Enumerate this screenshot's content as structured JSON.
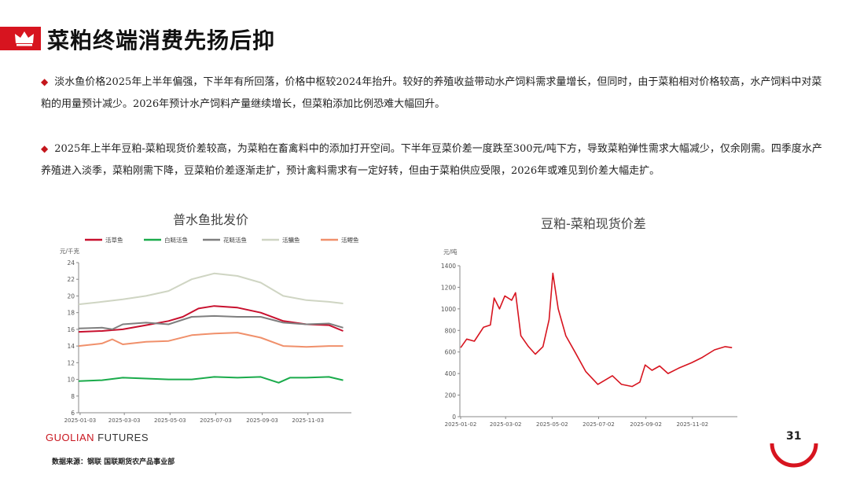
{
  "slide": {
    "title": "菜粕终端消费先扬后抑",
    "paragraphs": [
      "淡水鱼价格2025年上半年偏强，下半年有所回落，价格中枢较2024年抬升。较好的养殖收益带动水产饲料需求量增长，但同时，由于菜粕相对价格较高，水产饲料中对菜粕的用量预计减少。2026年预计水产饲料产量继续增长，但菜粕添加比例恐难大幅回升。",
      "2025年上半年豆粕-菜粕现货价差较高，为菜粕在畜禽料中的添加打开空间。下半年豆菜价差一度跌至300元/吨下方，导致菜粕弹性需求大幅减少，仅余刚需。四季度水产养殖进入淡季，菜粕刚需下降，豆菜粕价差逐渐走扩，预计禽料需求有一定好转，但由于菜粕供应受限，2026年或难见到价差大幅走扩。"
    ],
    "bullet_symbol": "◆",
    "footer_brand_bold": "GUOLIAN",
    "footer_brand_light": " FUTURES",
    "source": "数据来源：钢联  国联期货农产品事业部",
    "page_number": "31",
    "colors": {
      "accent": "#d7141f"
    }
  },
  "chart_data": [
    {
      "type": "line",
      "title": "普水鱼批发价",
      "ylabel": "元/千克",
      "ylim": [
        6,
        24
      ],
      "yticks": [
        6,
        8,
        10,
        12,
        14,
        16,
        18,
        20,
        22,
        24
      ],
      "xlim": [
        "2025-01-01",
        "2025-12-31"
      ],
      "xticks": [
        "2025-01-03",
        "2025-03-03",
        "2025-05-03",
        "2025-07-03",
        "2025-09-03",
        "2025-11-03"
      ],
      "legend_position": "top",
      "series": [
        {
          "name": "活草鱼",
          "color": "#c8102e",
          "points": [
            [
              "2025-01-01",
              15.7
            ],
            [
              "2025-02-01",
              15.8
            ],
            [
              "2025-03-01",
              16.0
            ],
            [
              "2025-04-01",
              16.5
            ],
            [
              "2025-05-01",
              17.0
            ],
            [
              "2025-05-20",
              17.5
            ],
            [
              "2025-06-10",
              18.5
            ],
            [
              "2025-07-01",
              18.8
            ],
            [
              "2025-08-01",
              18.6
            ],
            [
              "2025-09-01",
              18.0
            ],
            [
              "2025-10-01",
              17.0
            ],
            [
              "2025-11-01",
              16.6
            ],
            [
              "2025-12-01",
              16.5
            ],
            [
              "2025-12-20",
              15.8
            ]
          ]
        },
        {
          "name": "白鲢活鱼",
          "color": "#1aab4b",
          "points": [
            [
              "2025-01-01",
              9.8
            ],
            [
              "2025-02-01",
              9.9
            ],
            [
              "2025-03-01",
              10.2
            ],
            [
              "2025-04-01",
              10.1
            ],
            [
              "2025-05-01",
              10.0
            ],
            [
              "2025-06-01",
              10.0
            ],
            [
              "2025-07-01",
              10.3
            ],
            [
              "2025-08-01",
              10.2
            ],
            [
              "2025-09-01",
              10.3
            ],
            [
              "2025-09-25",
              9.6
            ],
            [
              "2025-10-10",
              10.2
            ],
            [
              "2025-11-01",
              10.2
            ],
            [
              "2025-12-01",
              10.3
            ],
            [
              "2025-12-20",
              9.9
            ]
          ]
        },
        {
          "name": "花鲢活鱼",
          "color": "#7f7f7f",
          "points": [
            [
              "2025-01-01",
              16.1
            ],
            [
              "2025-02-01",
              16.2
            ],
            [
              "2025-02-15",
              16.0
            ],
            [
              "2025-03-01",
              16.6
            ],
            [
              "2025-04-01",
              16.8
            ],
            [
              "2025-05-01",
              16.6
            ],
            [
              "2025-06-01",
              17.5
            ],
            [
              "2025-07-01",
              17.6
            ],
            [
              "2025-08-01",
              17.5
            ],
            [
              "2025-09-01",
              17.5
            ],
            [
              "2025-10-01",
              16.8
            ],
            [
              "2025-11-01",
              16.6
            ],
            [
              "2025-12-01",
              16.7
            ],
            [
              "2025-12-20",
              16.2
            ]
          ]
        },
        {
          "name": "活鳙鱼",
          "color": "#cfd5c3",
          "points": [
            [
              "2025-01-01",
              19.0
            ],
            [
              "2025-02-01",
              19.3
            ],
            [
              "2025-03-01",
              19.6
            ],
            [
              "2025-04-01",
              20.0
            ],
            [
              "2025-05-01",
              20.6
            ],
            [
              "2025-06-01",
              22.0
            ],
            [
              "2025-07-01",
              22.7
            ],
            [
              "2025-08-01",
              22.4
            ],
            [
              "2025-09-01",
              21.6
            ],
            [
              "2025-10-01",
              20.0
            ],
            [
              "2025-11-01",
              19.5
            ],
            [
              "2025-12-01",
              19.3
            ],
            [
              "2025-12-20",
              19.1
            ]
          ]
        },
        {
          "name": "活鲤鱼",
          "color": "#f0906b",
          "points": [
            [
              "2025-01-01",
              14.0
            ],
            [
              "2025-02-01",
              14.3
            ],
            [
              "2025-02-15",
              14.8
            ],
            [
              "2025-03-01",
              14.2
            ],
            [
              "2025-04-01",
              14.5
            ],
            [
              "2025-05-01",
              14.6
            ],
            [
              "2025-06-01",
              15.3
            ],
            [
              "2025-07-01",
              15.5
            ],
            [
              "2025-08-01",
              15.6
            ],
            [
              "2025-09-01",
              15.0
            ],
            [
              "2025-10-01",
              14.0
            ],
            [
              "2025-11-01",
              13.9
            ],
            [
              "2025-12-01",
              14.0
            ],
            [
              "2025-12-20",
              14.0
            ]
          ]
        }
      ]
    },
    {
      "type": "line",
      "title": "豆粕-菜粕现货价差",
      "ylabel": "元/吨",
      "ylim": [
        0,
        1400
      ],
      "yticks": [
        0,
        200,
        400,
        600,
        800,
        1000,
        1200,
        1400
      ],
      "xlim": [
        "2025-01-01",
        "2025-12-31"
      ],
      "xticks": [
        "2025-01-02",
        "2025-03-02",
        "2025-05-02",
        "2025-07-02",
        "2025-09-02",
        "2025-11-02"
      ],
      "series": [
        {
          "name": "",
          "color": "#d7141f",
          "points": [
            [
              "2025-01-02",
              640
            ],
            [
              "2025-01-10",
              720
            ],
            [
              "2025-01-20",
              700
            ],
            [
              "2025-02-01",
              830
            ],
            [
              "2025-02-10",
              850
            ],
            [
              "2025-02-15",
              1100
            ],
            [
              "2025-02-22",
              1000
            ],
            [
              "2025-03-01",
              1120
            ],
            [
              "2025-03-10",
              1080
            ],
            [
              "2025-03-15",
              1150
            ],
            [
              "2025-03-22",
              750
            ],
            [
              "2025-04-01",
              650
            ],
            [
              "2025-04-10",
              580
            ],
            [
              "2025-04-20",
              650
            ],
            [
              "2025-04-28",
              900
            ],
            [
              "2025-05-03",
              1330
            ],
            [
              "2025-05-10",
              1000
            ],
            [
              "2025-05-20",
              750
            ],
            [
              "2025-06-01",
              600
            ],
            [
              "2025-06-15",
              420
            ],
            [
              "2025-07-01",
              300
            ],
            [
              "2025-07-20",
              380
            ],
            [
              "2025-08-01",
              300
            ],
            [
              "2025-08-15",
              280
            ],
            [
              "2025-08-25",
              320
            ],
            [
              "2025-09-01",
              480
            ],
            [
              "2025-09-10",
              430
            ],
            [
              "2025-09-20",
              470
            ],
            [
              "2025-10-01",
              400
            ],
            [
              "2025-10-15",
              450
            ],
            [
              "2025-11-01",
              500
            ],
            [
              "2025-11-15",
              550
            ],
            [
              "2025-12-01",
              620
            ],
            [
              "2025-12-15",
              650
            ],
            [
              "2025-12-24",
              640
            ]
          ]
        }
      ]
    }
  ]
}
